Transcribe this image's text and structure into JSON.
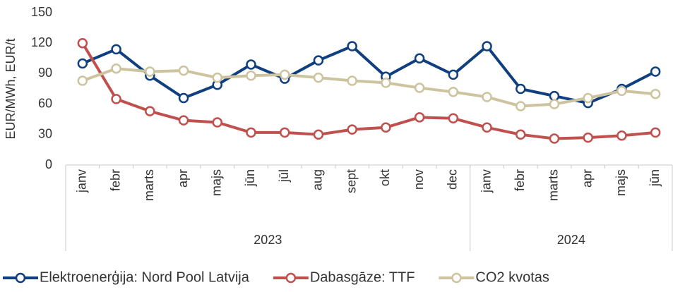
{
  "chart_data": {
    "type": "line",
    "y_label": "EUR/MWh, EUR/t",
    "groups": [
      {
        "name": "2023",
        "categories": [
          "janv",
          "febr",
          "marts",
          "apr",
          "majs",
          "jūn",
          "jūl",
          "aug",
          "sept",
          "okt",
          "nov",
          "dec"
        ]
      },
      {
        "name": "2024",
        "categories": [
          "janv",
          "febr",
          "marts",
          "apr",
          "majs",
          "jūn"
        ]
      }
    ],
    "series": [
      {
        "name": "Elektroenerģija: Nord Pool Latvija",
        "color": "#0f3f7f",
        "values": [
          100,
          114,
          88,
          66,
          79,
          99,
          85,
          103,
          117,
          87,
          105,
          89,
          117,
          75,
          68,
          61,
          75,
          92
        ]
      },
      {
        "name": "Dabasgāze: TTF",
        "color": "#c0504d",
        "values": [
          120,
          65,
          53,
          44,
          42,
          32,
          32,
          30,
          35,
          37,
          47,
          46,
          37,
          30,
          26,
          27,
          29,
          32
        ]
      },
      {
        "name": "CO2 kvotas",
        "color": "#cdc49f",
        "values": [
          83,
          95,
          92,
          93,
          86,
          88,
          89,
          86,
          83,
          81,
          76,
          72,
          67,
          58,
          60,
          66,
          73,
          70
        ]
      }
    ],
    "ylim": [
      0,
      150
    ],
    "yticks": [
      0,
      30,
      60,
      90,
      120,
      150
    ],
    "grid": false,
    "legend": "bottom"
  }
}
